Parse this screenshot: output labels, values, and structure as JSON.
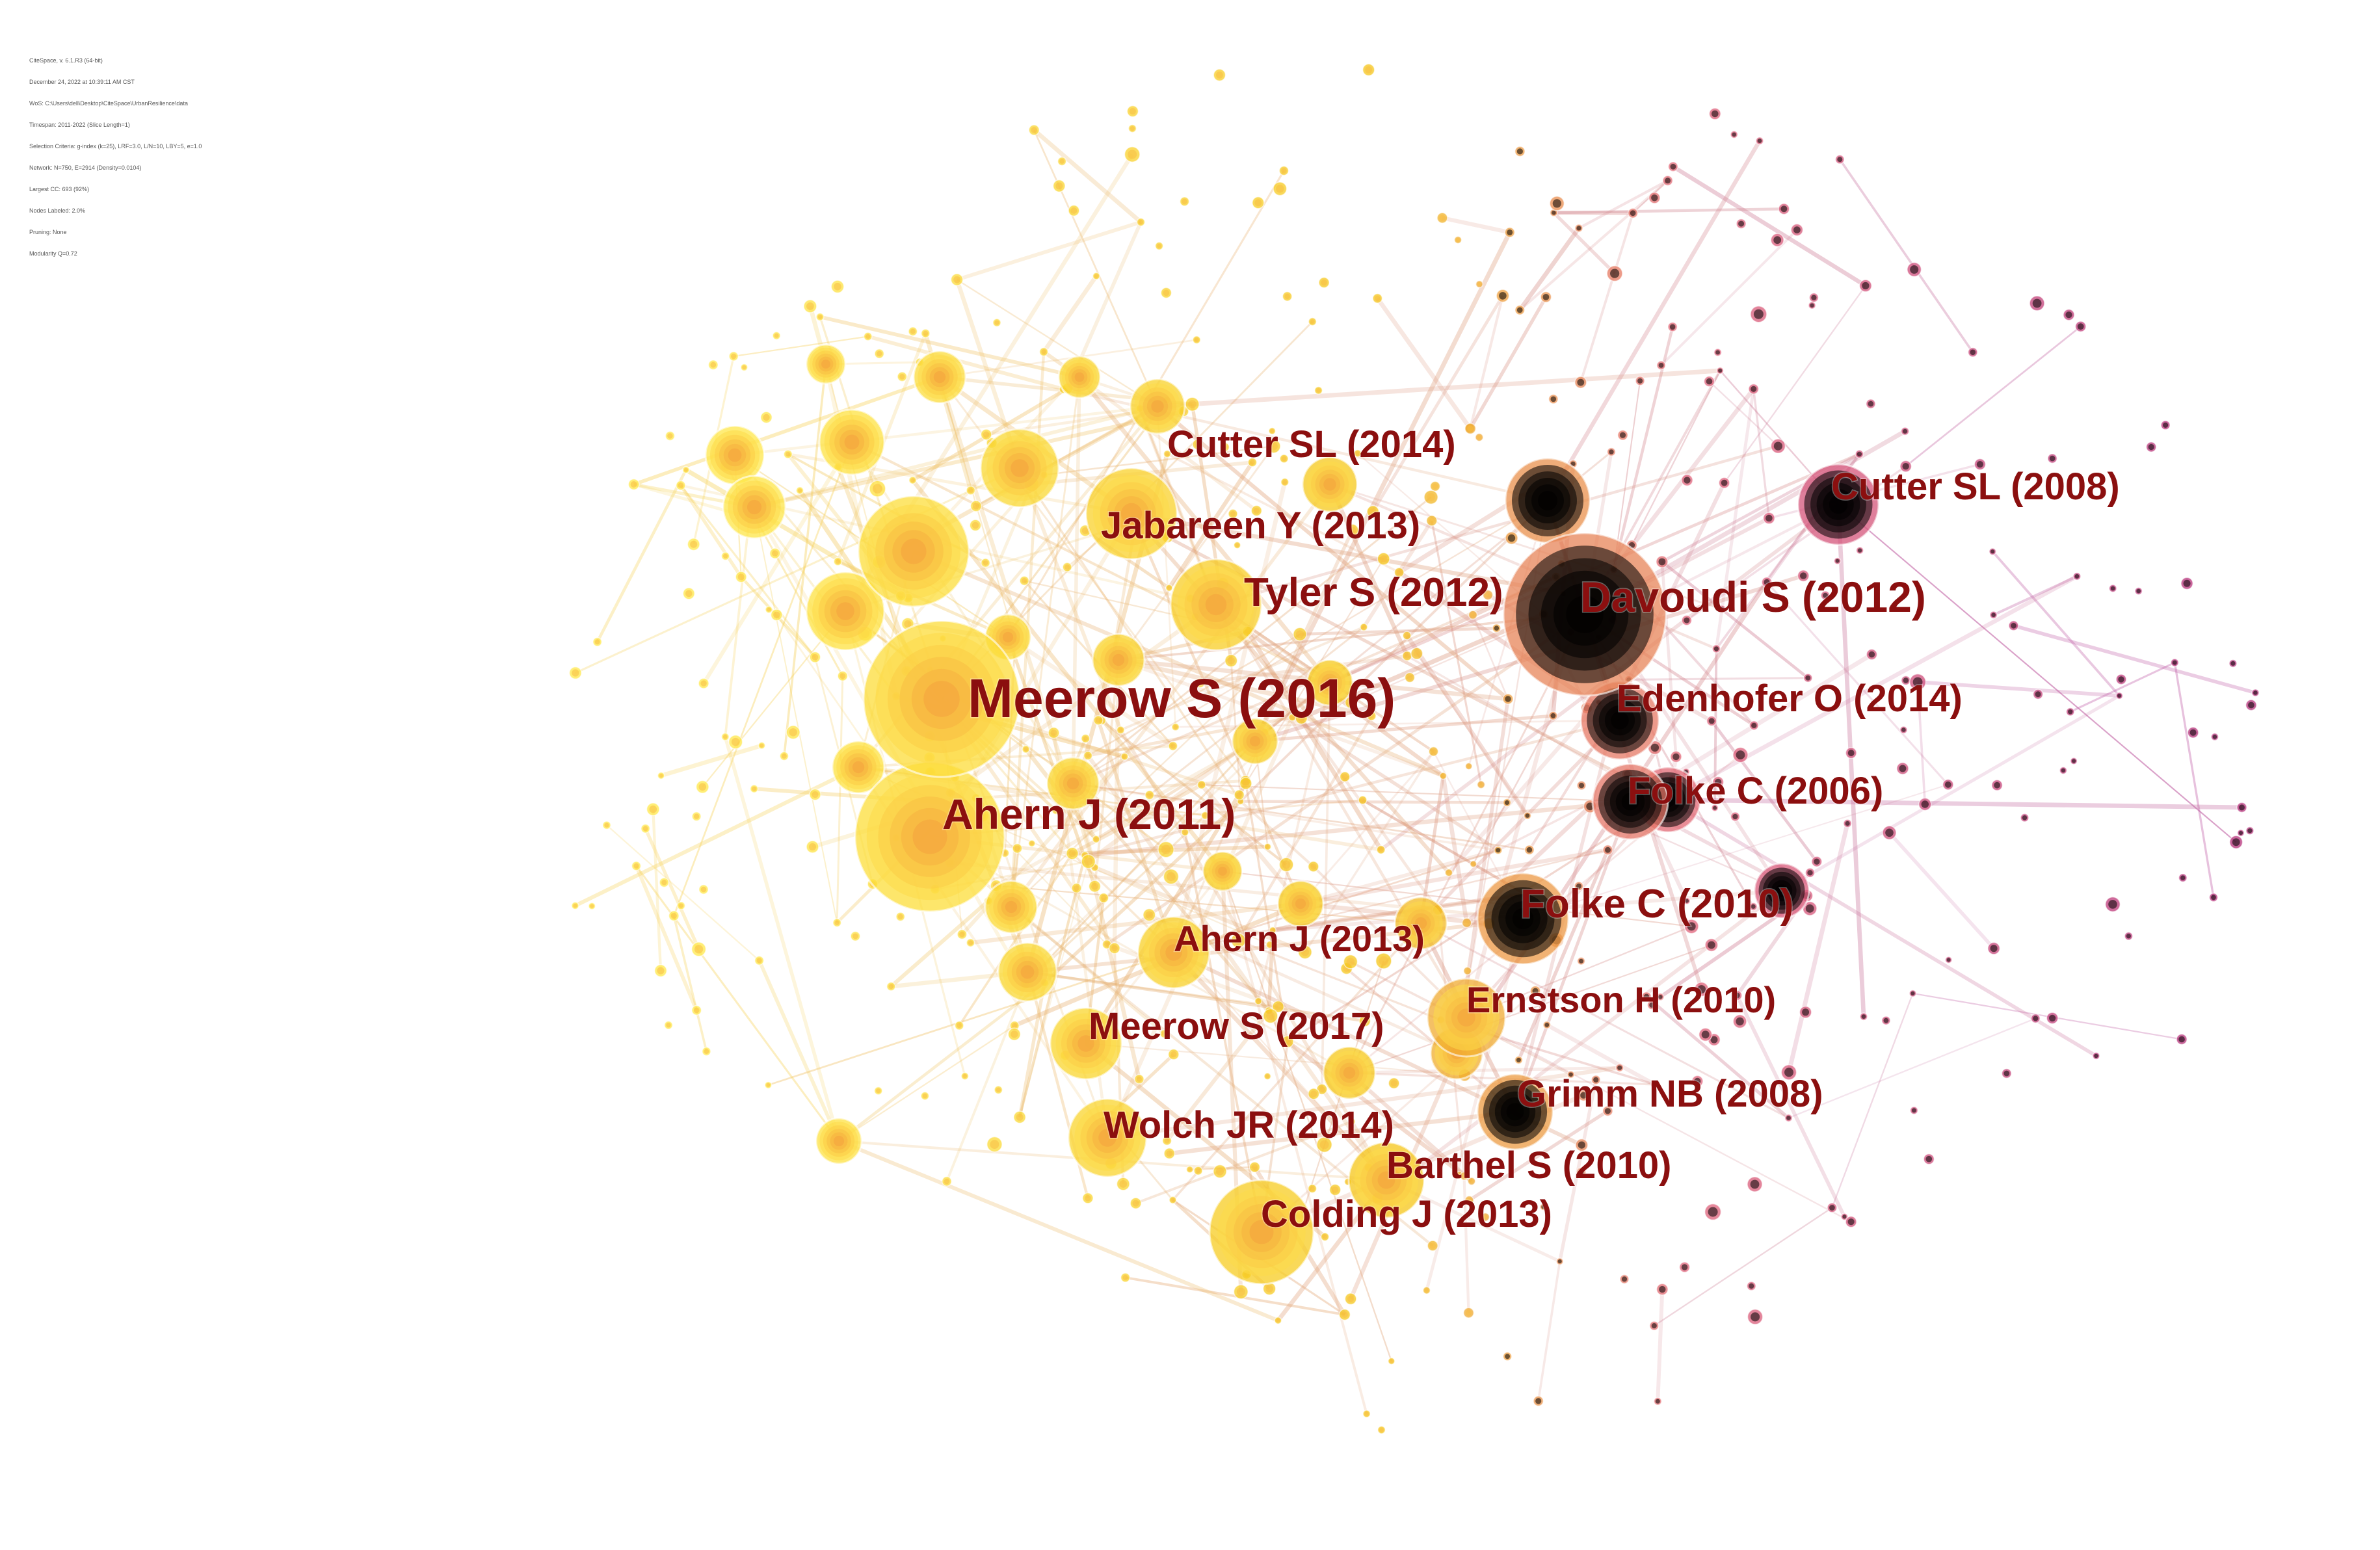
{
  "view": {
    "type": "co-citation network",
    "palette": {
      "background": "#ffffff",
      "label": "#8b0f0f",
      "early_years": "#b5307a",
      "mid_years": "#e0627a",
      "late_years": "#f5c518",
      "recent_years": "#ffe84a",
      "edge_early": "#c060a8",
      "edge_late": "#f7d25a"
    },
    "meta_lines": [
      "CiteSpace, v. 6.1.R3 (64-bit)",
      "December 24, 2022 at 10:39:11 AM CST",
      "WoS: C:\\Users\\dell\\Desktop\\CiteSpace\\UrbanResilience\\data",
      "Timespan: 2011-2022 (Slice Length=1)",
      "Selection Criteria: g-index (k=25), LRF=3.0, L/N=10, LBY=5, e=1.0",
      "Network: N=750, E=2914 (Density=0.0104)",
      "Largest CC: 693 (92%)",
      "Nodes Labeled: 2.0%",
      "Pruning: None",
      "Modularity Q=0.72"
    ]
  },
  "labels": [
    {
      "text": "Meerow S (2016)",
      "size": "xl"
    },
    {
      "text": "Ahern J (2011)",
      "size": "lg"
    },
    {
      "text": "Davoudi S (2012)",
      "size": "lg"
    },
    {
      "text": "Cutter SL (2014)",
      "size": "md"
    },
    {
      "text": "Cutter SL (2008)",
      "size": "md"
    },
    {
      "text": "Jabareen Y (2013)",
      "size": "md"
    },
    {
      "text": "Tyler S (2012)",
      "size": "md"
    },
    {
      "text": "Edenhofer O (2014)",
      "size": "md"
    },
    {
      "text": "Folke C (2006)",
      "size": "md"
    },
    {
      "text": "Folke C (2010)",
      "size": "md"
    },
    {
      "text": "Ahern J (2013)",
      "size": "md"
    },
    {
      "text": "Ernstson H (2010)",
      "size": "md"
    },
    {
      "text": "Meerow S (2017)",
      "size": "md"
    },
    {
      "text": "Grimm NB (2008)",
      "size": "md"
    },
    {
      "text": "Wolch JR (2014)",
      "size": "md"
    },
    {
      "text": "Barthel S (2010)",
      "size": "md"
    },
    {
      "text": "Colding J (2013)",
      "size": "md"
    }
  ]
}
